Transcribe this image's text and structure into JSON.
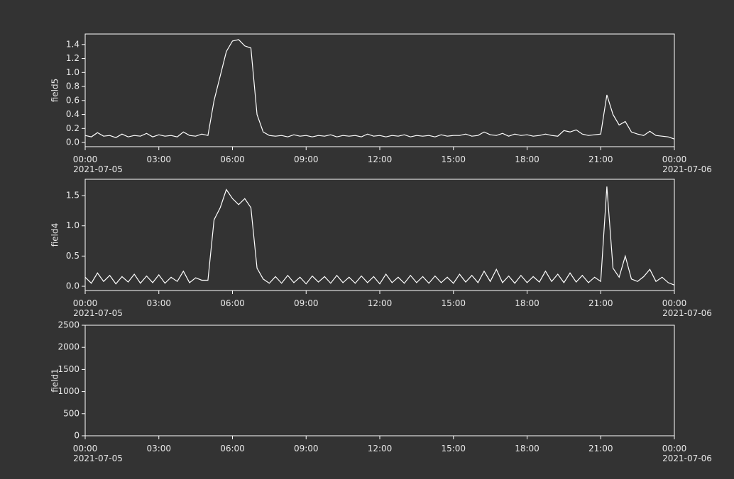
{
  "chart_data": [
    {
      "type": "line",
      "ylabel": "field5",
      "x": [
        0,
        0.25,
        0.5,
        0.75,
        1,
        1.25,
        1.5,
        1.75,
        2,
        2.25,
        2.5,
        2.75,
        3,
        3.25,
        3.5,
        3.75,
        4,
        4.25,
        4.5,
        4.75,
        5,
        5.25,
        5.5,
        5.75,
        6,
        6.25,
        6.5,
        6.75,
        7,
        7.25,
        7.5,
        7.75,
        8,
        8.25,
        8.5,
        8.75,
        9,
        9.25,
        9.5,
        9.75,
        10,
        10.25,
        10.5,
        10.75,
        11,
        11.25,
        11.5,
        11.75,
        12,
        12.25,
        12.5,
        12.75,
        13,
        13.25,
        13.5,
        13.75,
        14,
        14.25,
        14.5,
        14.75,
        15,
        15.25,
        15.5,
        15.75,
        16,
        16.25,
        16.5,
        16.75,
        17,
        17.25,
        17.5,
        17.75,
        18,
        18.25,
        18.5,
        18.75,
        19,
        19.25,
        19.5,
        19.75,
        20,
        20.25,
        20.5,
        20.75,
        21,
        21.25,
        21.5,
        21.75,
        22,
        22.25,
        22.5,
        22.75,
        23,
        23.25,
        23.5,
        23.75,
        24
      ],
      "series": [
        {
          "name": "field5",
          "color": "#ffffff",
          "values": [
            0.1,
            0.08,
            0.14,
            0.09,
            0.1,
            0.07,
            0.12,
            0.08,
            0.1,
            0.09,
            0.13,
            0.08,
            0.11,
            0.09,
            0.1,
            0.08,
            0.15,
            0.1,
            0.09,
            0.12,
            0.1,
            0.6,
            0.95,
            1.3,
            1.45,
            1.47,
            1.38,
            1.35,
            0.4,
            0.15,
            0.1,
            0.09,
            0.1,
            0.08,
            0.11,
            0.09,
            0.1,
            0.08,
            0.1,
            0.09,
            0.11,
            0.08,
            0.1,
            0.09,
            0.1,
            0.08,
            0.12,
            0.09,
            0.1,
            0.08,
            0.1,
            0.09,
            0.11,
            0.08,
            0.1,
            0.09,
            0.1,
            0.08,
            0.11,
            0.09,
            0.1,
            0.1,
            0.12,
            0.09,
            0.1,
            0.15,
            0.11,
            0.1,
            0.13,
            0.09,
            0.12,
            0.1,
            0.11,
            0.09,
            0.1,
            0.12,
            0.1,
            0.09,
            0.17,
            0.15,
            0.18,
            0.12,
            0.1,
            0.11,
            0.12,
            0.68,
            0.4,
            0.25,
            0.3,
            0.15,
            0.12,
            0.1,
            0.16,
            0.1,
            0.09,
            0.08,
            0.05
          ]
        }
      ],
      "xlim": [
        0,
        24
      ],
      "xticks": [
        {
          "value": 0,
          "label": "00:00"
        },
        {
          "value": 3,
          "label": "03:00"
        },
        {
          "value": 6,
          "label": "06:00"
        },
        {
          "value": 9,
          "label": "09:00"
        },
        {
          "value": 12,
          "label": "12:00"
        },
        {
          "value": 15,
          "label": "15:00"
        },
        {
          "value": 18,
          "label": "18:00"
        },
        {
          "value": 21,
          "label": "21:00"
        },
        {
          "value": 24,
          "label": "00:00"
        }
      ],
      "xdates": [
        {
          "value": 0,
          "label": "2021-07-05"
        },
        {
          "value": 24,
          "label": "2021-07-06"
        }
      ],
      "ylim": [
        -0.06,
        1.55
      ],
      "yticks": [
        {
          "value": 0,
          "label": "0.0"
        },
        {
          "value": 0.2,
          "label": "0.2"
        },
        {
          "value": 0.4,
          "label": "0.4"
        },
        {
          "value": 0.6,
          "label": "0.6"
        },
        {
          "value": 0.8,
          "label": "0.8"
        },
        {
          "value": 1,
          "label": "1.0"
        },
        {
          "value": 1.2,
          "label": "1.2"
        },
        {
          "value": 1.4,
          "label": "1.4"
        }
      ]
    },
    {
      "type": "line",
      "ylabel": "field4",
      "x": [
        0,
        0.25,
        0.5,
        0.75,
        1,
        1.25,
        1.5,
        1.75,
        2,
        2.25,
        2.5,
        2.75,
        3,
        3.25,
        3.5,
        3.75,
        4,
        4.25,
        4.5,
        4.75,
        5,
        5.25,
        5.5,
        5.75,
        6,
        6.25,
        6.5,
        6.75,
        7,
        7.25,
        7.5,
        7.75,
        8,
        8.25,
        8.5,
        8.75,
        9,
        9.25,
        9.5,
        9.75,
        10,
        10.25,
        10.5,
        10.75,
        11,
        11.25,
        11.5,
        11.75,
        12,
        12.25,
        12.5,
        12.75,
        13,
        13.25,
        13.5,
        13.75,
        14,
        14.25,
        14.5,
        14.75,
        15,
        15.25,
        15.5,
        15.75,
        16,
        16.25,
        16.5,
        16.75,
        17,
        17.25,
        17.5,
        17.75,
        18,
        18.25,
        18.5,
        18.75,
        19,
        19.25,
        19.5,
        19.75,
        20,
        20.25,
        20.5,
        20.75,
        21,
        21.25,
        21.5,
        21.75,
        22,
        22.25,
        22.5,
        22.75,
        23,
        23.25,
        23.5,
        23.75,
        24
      ],
      "series": [
        {
          "name": "field4",
          "color": "#ffffff",
          "values": [
            0.15,
            0.05,
            0.22,
            0.08,
            0.18,
            0.04,
            0.16,
            0.07,
            0.2,
            0.05,
            0.17,
            0.06,
            0.19,
            0.05,
            0.15,
            0.08,
            0.25,
            0.06,
            0.14,
            0.1,
            0.1,
            1.1,
            1.3,
            1.6,
            1.45,
            1.35,
            1.45,
            1.3,
            0.3,
            0.12,
            0.05,
            0.16,
            0.05,
            0.18,
            0.06,
            0.15,
            0.04,
            0.17,
            0.07,
            0.16,
            0.05,
            0.18,
            0.06,
            0.15,
            0.05,
            0.17,
            0.06,
            0.16,
            0.04,
            0.2,
            0.06,
            0.15,
            0.05,
            0.18,
            0.06,
            0.16,
            0.05,
            0.17,
            0.06,
            0.15,
            0.05,
            0.2,
            0.07,
            0.18,
            0.06,
            0.25,
            0.08,
            0.28,
            0.06,
            0.17,
            0.05,
            0.18,
            0.06,
            0.16,
            0.07,
            0.25,
            0.08,
            0.2,
            0.06,
            0.22,
            0.07,
            0.18,
            0.06,
            0.15,
            0.08,
            1.65,
            0.3,
            0.15,
            0.5,
            0.12,
            0.08,
            0.16,
            0.28,
            0.08,
            0.15,
            0.06,
            0.02
          ]
        }
      ],
      "xlim": [
        0,
        24
      ],
      "xticks": [
        {
          "value": 0,
          "label": "00:00"
        },
        {
          "value": 3,
          "label": "03:00"
        },
        {
          "value": 6,
          "label": "06:00"
        },
        {
          "value": 9,
          "label": "09:00"
        },
        {
          "value": 12,
          "label": "12:00"
        },
        {
          "value": 15,
          "label": "15:00"
        },
        {
          "value": 18,
          "label": "18:00"
        },
        {
          "value": 21,
          "label": "21:00"
        },
        {
          "value": 24,
          "label": "00:00"
        }
      ],
      "xdates": [
        {
          "value": 0,
          "label": "2021-07-05"
        },
        {
          "value": 24,
          "label": "2021-07-06"
        }
      ],
      "ylim": [
        -0.07,
        1.77
      ],
      "yticks": [
        {
          "value": 0,
          "label": "0.0"
        },
        {
          "value": 0.5,
          "label": "0.5"
        },
        {
          "value": 1,
          "label": "1.0"
        },
        {
          "value": 1.5,
          "label": "1.5"
        }
      ]
    },
    {
      "type": "line",
      "ylabel": "field1",
      "x": [],
      "series": [],
      "xlim": [
        0,
        24
      ],
      "xticks": [
        {
          "value": 0,
          "label": "00:00"
        },
        {
          "value": 3,
          "label": "03:00"
        },
        {
          "value": 6,
          "label": "06:00"
        },
        {
          "value": 9,
          "label": "09:00"
        },
        {
          "value": 12,
          "label": "12:00"
        },
        {
          "value": 15,
          "label": "15:00"
        },
        {
          "value": 18,
          "label": "18:00"
        },
        {
          "value": 21,
          "label": "21:00"
        },
        {
          "value": 24,
          "label": "00:00"
        }
      ],
      "xdates": [
        {
          "value": 0,
          "label": "2021-07-05"
        },
        {
          "value": 24,
          "label": "2021-07-06"
        }
      ],
      "ylim": [
        0,
        2500
      ],
      "yticks": [
        0,
        500,
        1000,
        1500,
        2000,
        2500
      ]
    }
  ]
}
